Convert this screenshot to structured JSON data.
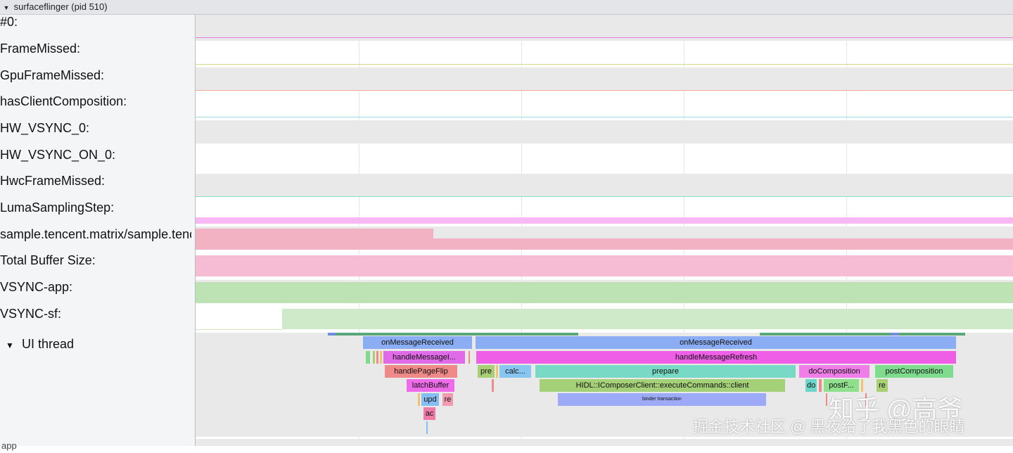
{
  "process_header": {
    "title": "surfaceflinger (pid 510)",
    "chevron_icon": "chevron-down-icon"
  },
  "tracks": [
    {
      "label": "#0:"
    },
    {
      "label": "FrameMissed:"
    },
    {
      "label": "GpuFrameMissed:"
    },
    {
      "label": "hasClientComposition:"
    },
    {
      "label": "HW_VSYNC_0:"
    },
    {
      "label": "HW_VSYNC_ON_0:"
    },
    {
      "label": "HwcFrameMissed:"
    },
    {
      "label": "LumaSamplingStep:"
    },
    {
      "label": "sample.tencent.matrix/sample.tencent.matrix.MainActivity"
    },
    {
      "label": "Total Buffer Size:"
    },
    {
      "label": "VSYNC-app:"
    },
    {
      "label": "VSYNC-sf:"
    }
  ],
  "ui_thread": {
    "label": "UI thread",
    "chevron_icon": "chevron-down-icon",
    "slices": [
      {
        "label": "onMessageReceived",
        "color": "#8aadf4"
      },
      {
        "label": "onMessageReceived",
        "color": "#8aadf4"
      },
      {
        "label": "handleMessageI...",
        "color": "#e06ae8"
      },
      {
        "label": "handleMessageRefresh",
        "color": "#ee5ee6"
      },
      {
        "label": "handlePageFlip",
        "color": "#f08a88"
      },
      {
        "label": "pre",
        "color": "#a8cf74"
      },
      {
        "label": "calc...",
        "color": "#88c6ef"
      },
      {
        "label": "prepare",
        "color": "#78dac4"
      },
      {
        "label": "doComposition",
        "color": "#f07ee8"
      },
      {
        "label": "postComposition",
        "color": "#7fdc8e"
      },
      {
        "label": "latchBuffer",
        "color": "#ee6cea"
      },
      {
        "label": "HIDL::IComposerClient::executeCommands::client",
        "color": "#a4d078"
      },
      {
        "label": "do",
        "color": "#6ed6c8"
      },
      {
        "label": "postF...",
        "color": "#8ee08c"
      },
      {
        "label": "re",
        "color": "#a8cf74"
      },
      {
        "label": "upd",
        "color": "#86bdf2"
      },
      {
        "label": "re",
        "color": "#f29ab2"
      },
      {
        "label": "binder transaction",
        "color": "#9caaf8"
      },
      {
        "label": "ac",
        "color": "#ee7aa8"
      }
    ]
  },
  "next_process": {
    "label": "app"
  },
  "watermark": {
    "line1": "知乎 @高爷",
    "line2": "掘金技术社区 @ 黑夜给了我黑色的眼睛"
  },
  "colors": {
    "band_gray": "#e9e9ea",
    "counter_pink": "#f3b2c3",
    "total_buffer_pink": "#f6bcd4",
    "vsync_app_green": "#bde3b4",
    "vsync_sf_green": "#cfeac8",
    "luma_magenta": "#f7b8f4"
  }
}
